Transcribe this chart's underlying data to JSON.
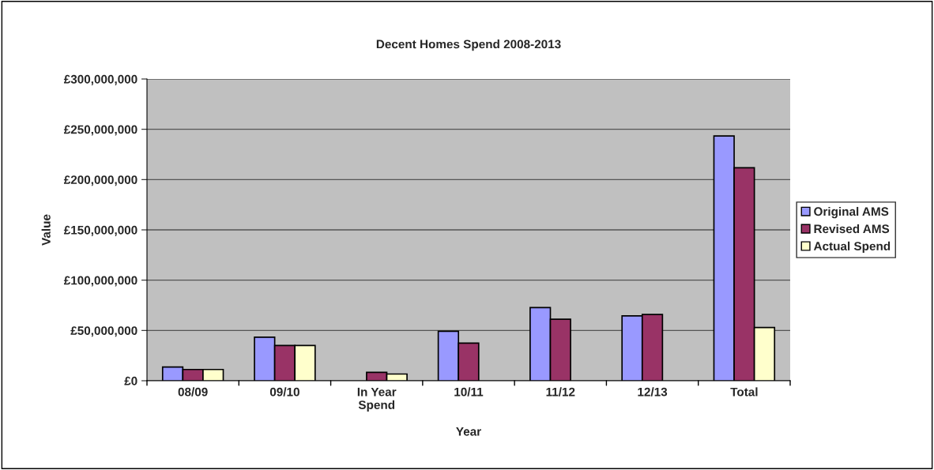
{
  "chart_data": {
    "type": "bar",
    "title": "Decent Homes Spend 2008-2013",
    "xlabel": "Year",
    "ylabel": "Value",
    "categories": [
      "08/09",
      "09/10",
      "In Year\nSpend",
      "10/11",
      "11/12",
      "12/13",
      "Total"
    ],
    "series": [
      {
        "name": "Original AMS",
        "color": "#9999ff",
        "values": [
          13600000,
          43300000,
          null,
          49200000,
          72700000,
          64500000,
          243300000
        ]
      },
      {
        "name": "Revised AMS",
        "color": "#993366",
        "values": [
          11200000,
          35000000,
          8300000,
          37400000,
          61100000,
          65900000,
          211700000
        ]
      },
      {
        "name": "Actual Spend",
        "color": "#ffffcc",
        "values": [
          11200000,
          35000000,
          6700000,
          null,
          null,
          null,
          52900000
        ]
      }
    ],
    "ylim": [
      0,
      300000000
    ],
    "yticks": [
      {
        "value": 0,
        "label": "£0"
      },
      {
        "value": 50000000,
        "label": "£50,000,000"
      },
      {
        "value": 100000000,
        "label": "£100,000,000"
      },
      {
        "value": 150000000,
        "label": "£150,000,000"
      },
      {
        "value": 200000000,
        "label": "£200,000,000"
      },
      {
        "value": 250000000,
        "label": "£250,000,000"
      },
      {
        "value": 300000000,
        "label": "£300,000,000"
      }
    ],
    "grid": "y",
    "legend": "right"
  }
}
